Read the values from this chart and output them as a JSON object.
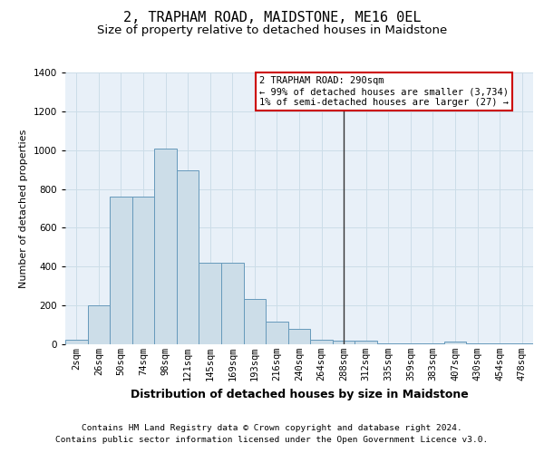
{
  "title": "2, TRAPHAM ROAD, MAIDSTONE, ME16 0EL",
  "subtitle": "Size of property relative to detached houses in Maidstone",
  "xlabel": "Distribution of detached houses by size in Maidstone",
  "ylabel": "Number of detached properties",
  "footer_line1": "Contains HM Land Registry data © Crown copyright and database right 2024.",
  "footer_line2": "Contains public sector information licensed under the Open Government Licence v3.0.",
  "categories": [
    "2sqm",
    "26sqm",
    "50sqm",
    "74sqm",
    "98sqm",
    "121sqm",
    "145sqm",
    "169sqm",
    "193sqm",
    "216sqm",
    "240sqm",
    "264sqm",
    "288sqm",
    "312sqm",
    "335sqm",
    "359sqm",
    "383sqm",
    "407sqm",
    "430sqm",
    "454sqm",
    "478sqm"
  ],
  "bar_values": [
    25,
    200,
    760,
    760,
    1010,
    895,
    420,
    420,
    235,
    115,
    80,
    25,
    20,
    20,
    5,
    5,
    5,
    15,
    5,
    5,
    5
  ],
  "bar_color": "#ccdde8",
  "bar_edge_color": "#6699bb",
  "grid_color": "#ccdde8",
  "bg_color": "#e8f0f8",
  "vline_x_index": 12,
  "vline_color": "#333333",
  "annotation_text": "2 TRAPHAM ROAD: 290sqm\n← 99% of detached houses are smaller (3,734)\n1% of semi-detached houses are larger (27) →",
  "annotation_box_color": "#cc0000",
  "ylim": [
    0,
    1400
  ],
  "yticks": [
    0,
    200,
    400,
    600,
    800,
    1000,
    1200,
    1400
  ],
  "title_fontsize": 11,
  "subtitle_fontsize": 9.5,
  "xlabel_fontsize": 9,
  "ylabel_fontsize": 8,
  "tick_fontsize": 7.5,
  "annotation_fontsize": 7.5,
  "footer_fontsize": 6.8
}
